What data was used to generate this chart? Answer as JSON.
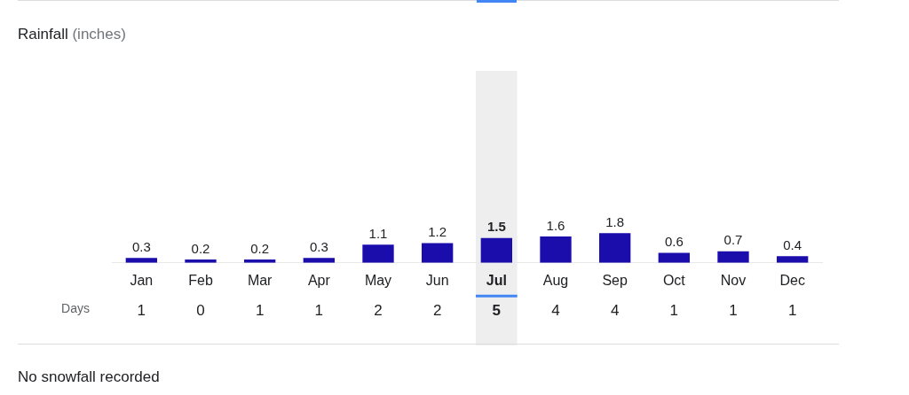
{
  "chart_data": {
    "type": "bar",
    "title": "Rainfall",
    "subtitle": "(inches)",
    "categories": [
      "Jan",
      "Feb",
      "Mar",
      "Apr",
      "May",
      "Jun",
      "Jul",
      "Aug",
      "Sep",
      "Oct",
      "Nov",
      "Dec"
    ],
    "values": [
      0.3,
      0.2,
      0.2,
      0.3,
      1.1,
      1.2,
      1.5,
      1.6,
      1.8,
      0.6,
      0.7,
      0.4
    ],
    "color": "#1a0dab",
    "data_labels": true,
    "tick_labels": "x",
    "legend": false,
    "bands": [
      {
        "axis": "x",
        "from": "Jul",
        "to": "Jul",
        "color": "#eeeeee"
      }
    ],
    "annotations": [
      "Days",
      "1",
      "0",
      "1",
      "1",
      "2",
      "2",
      "5",
      "4",
      "4",
      "1",
      "1",
      "1",
      "No snowfall recorded"
    ]
  }
}
